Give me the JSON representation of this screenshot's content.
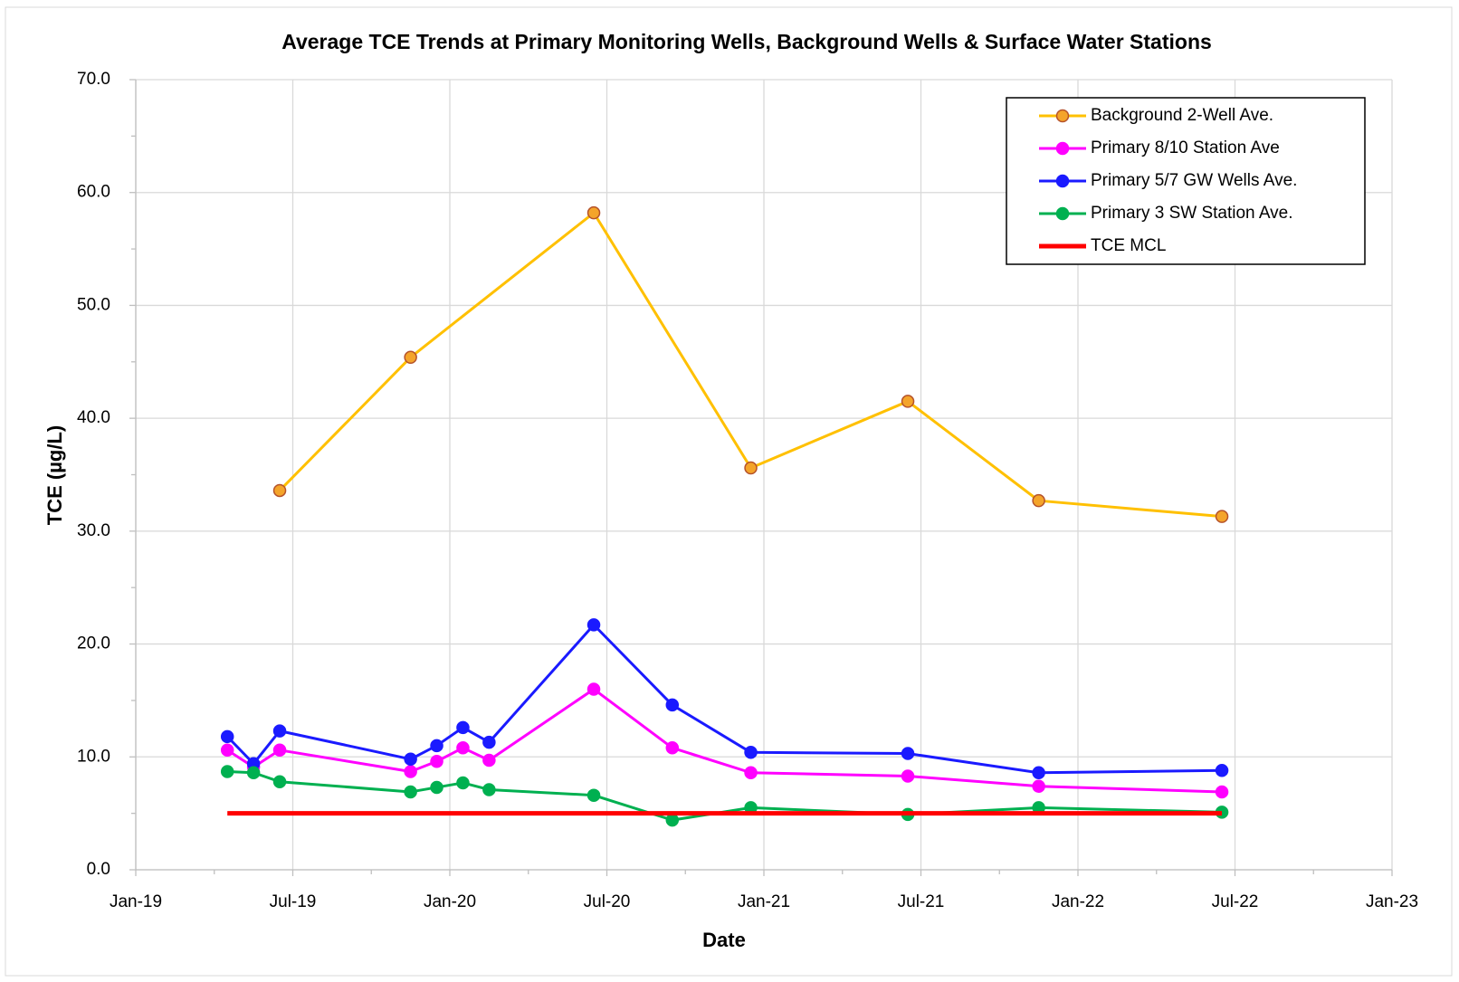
{
  "chart_data": {
    "type": "line",
    "title": "Average TCE Trends at Primary Monitoring Wells, Background Wells & Surface Water Stations",
    "x_label": "Date",
    "y_label": "TCE  (µg/L)",
    "ylim": [
      0,
      70
    ],
    "yticks": [
      {
        "value": 0,
        "label": "0.0"
      },
      {
        "value": 10,
        "label": "10.0"
      },
      {
        "value": 20,
        "label": "20.0"
      },
      {
        "value": 30,
        "label": "30.0"
      },
      {
        "value": 40,
        "label": "40.0"
      },
      {
        "value": 50,
        "label": "50.0"
      },
      {
        "value": 60,
        "label": "60.0"
      },
      {
        "value": 70,
        "label": "70.0"
      }
    ],
    "xlim": [
      "2019-01",
      "2023-01"
    ],
    "xticks": [
      {
        "value": "2019-01",
        "label": "Jan-19"
      },
      {
        "value": "2019-07",
        "label": "Jul-19"
      },
      {
        "value": "2020-01",
        "label": "Jan-20"
      },
      {
        "value": "2020-07",
        "label": "Jul-20"
      },
      {
        "value": "2021-01",
        "label": "Jan-21"
      },
      {
        "value": "2021-07",
        "label": "Jul-21"
      },
      {
        "value": "2022-01",
        "label": "Jan-22"
      },
      {
        "value": "2022-07",
        "label": "Jul-22"
      },
      {
        "value": "2023-01",
        "label": "Jan-23"
      }
    ],
    "grid": true,
    "legend": "upper right",
    "series": [
      {
        "name": "Background 2-Well Ave.",
        "color": "#ffc000",
        "marker_color": "#f4a42a",
        "marker_edge": "#b5522a",
        "x": [
          "2019-06",
          "2019-11",
          "2020-06",
          "2020-12",
          "2021-06",
          "2021-11",
          "2022-06"
        ],
        "values": [
          33.6,
          45.4,
          58.2,
          35.6,
          41.5,
          32.7,
          31.3
        ]
      },
      {
        "name": "Primary 8/10 Station Ave",
        "color": "#ff00ff",
        "marker_color": "#ff00ff",
        "marker_edge": "#ff00ff",
        "x": [
          "2019-04",
          "2019-05",
          "2019-06",
          "2019-11",
          "2019-12",
          "2020-01",
          "2020-02",
          "2020-06",
          "2020-09",
          "2020-12",
          "2021-06",
          "2021-11",
          "2022-06"
        ],
        "values": [
          10.6,
          9.1,
          10.6,
          8.7,
          9.6,
          10.8,
          9.7,
          16.0,
          10.8,
          8.6,
          8.3,
          7.4,
          6.9
        ]
      },
      {
        "name": "Primary 5/7 GW Wells Ave.",
        "color": "#1a1aff",
        "marker_color": "#1a1aff",
        "marker_edge": "#1a1aff",
        "x": [
          "2019-04",
          "2019-05",
          "2019-06",
          "2019-11",
          "2019-12",
          "2020-01",
          "2020-02",
          "2020-06",
          "2020-09",
          "2020-12",
          "2021-06",
          "2021-11",
          "2022-06"
        ],
        "values": [
          11.8,
          9.4,
          12.3,
          9.8,
          11.0,
          12.6,
          11.3,
          21.7,
          14.6,
          10.4,
          10.3,
          8.6,
          8.8
        ]
      },
      {
        "name": "Primary 3 SW Station Ave.",
        "color": "#00b050",
        "marker_color": "#00b050",
        "marker_edge": "#00b050",
        "x": [
          "2019-04",
          "2019-05",
          "2019-06",
          "2019-11",
          "2019-12",
          "2020-01",
          "2020-02",
          "2020-06",
          "2020-09",
          "2020-12",
          "2021-06",
          "2021-11",
          "2022-06"
        ],
        "values": [
          8.7,
          8.6,
          7.8,
          6.9,
          7.3,
          7.7,
          7.1,
          6.6,
          4.4,
          5.5,
          4.9,
          5.5,
          5.1
        ]
      },
      {
        "name": "TCE MCL",
        "color": "#ff0000",
        "marker": false,
        "x": [
          "2019-04",
          "2022-06"
        ],
        "values": [
          5,
          5
        ]
      }
    ]
  }
}
